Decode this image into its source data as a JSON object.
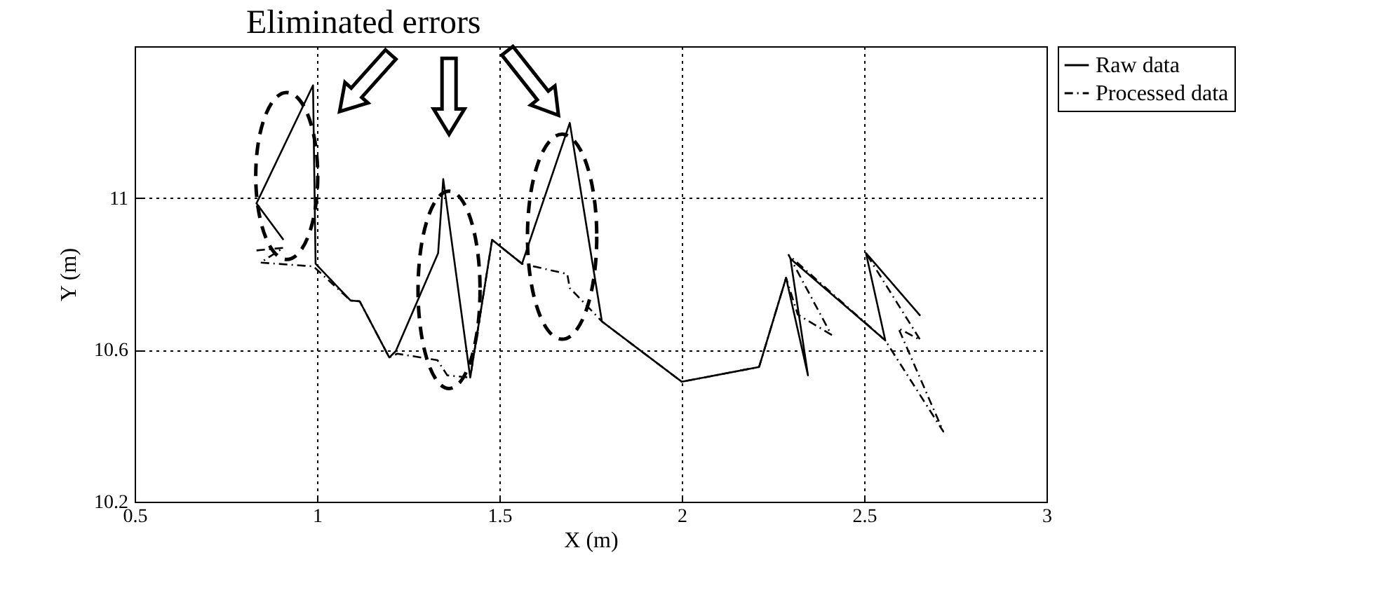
{
  "chart_data": {
    "type": "line",
    "xlabel": "X (m)",
    "ylabel": "Y (m)",
    "annotations": [
      "Eliminated errors"
    ],
    "xlim": [
      0.5,
      3
    ],
    "xticks": [
      0.5,
      1,
      1.5,
      2,
      2.5,
      3
    ],
    "ylim": [
      10.2,
      11.4
    ],
    "yticks": [
      10.2,
      10.6,
      11
    ],
    "grid": true,
    "legend": "right",
    "marker": "none",
    "series": [
      {
        "name": "Raw data",
        "color": "#000000",
        "line_style": "solid",
        "x": [
          0.908,
          0.834,
          0.989,
          0.996,
          1.092,
          1.117,
          1.198,
          1.216,
          1.332,
          1.346,
          1.42,
          1.48,
          1.562,
          1.693,
          1.781,
          2.0,
          2.212,
          2.286,
          2.346,
          2.298,
          2.558,
          2.505,
          2.654
        ],
        "values": [
          10.89,
          10.986,
          11.297,
          10.827,
          10.73,
          10.728,
          10.58,
          10.597,
          10.855,
          11.05,
          10.527,
          10.89,
          10.827,
          11.198,
          10.675,
          10.516,
          10.555,
          10.79,
          10.533,
          10.84,
          10.625,
          10.855,
          10.69
        ]
      },
      {
        "name": "Processed data",
        "color": "#000000",
        "line_style": "dashed",
        "x": [
          0.834,
          0.908,
          0.845,
          0.99,
          1.092,
          1.117,
          1.198,
          1.22,
          1.33,
          1.357,
          1.42,
          1.48,
          1.562,
          1.686,
          1.693,
          1.781,
          2.0,
          2.212,
          2.286,
          2.318,
          2.41,
          2.293,
          2.558,
          2.717,
          2.594,
          2.654,
          2.505
        ],
        "values": [
          10.862,
          10.869,
          10.83,
          10.82,
          10.73,
          10.728,
          10.58,
          10.59,
          10.573,
          10.533,
          10.527,
          10.89,
          10.827,
          10.8,
          10.763,
          10.675,
          10.516,
          10.555,
          10.79,
          10.693,
          10.64,
          10.85,
          10.625,
          10.385,
          10.657,
          10.626,
          10.855
        ]
      }
    ]
  }
}
